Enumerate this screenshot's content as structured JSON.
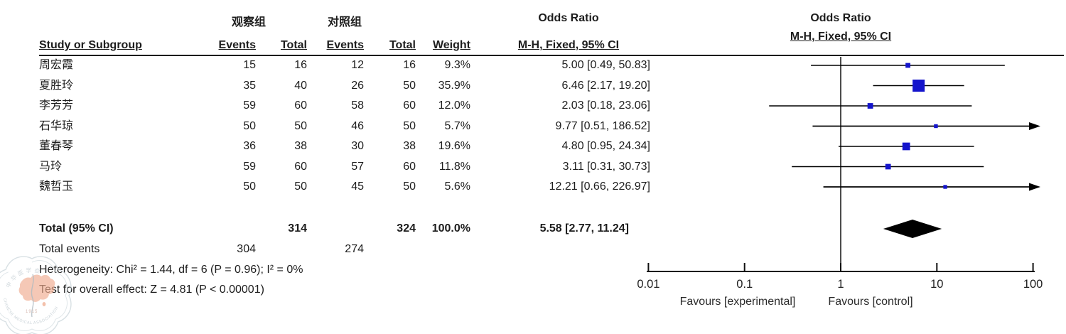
{
  "header": {
    "group_experimental": "观察组",
    "group_control": "对照组",
    "col_study": "Study or Subgroup",
    "col_events": "Events",
    "col_total": "Total",
    "col_weight": "Weight",
    "or_label": "Odds Ratio",
    "mh_label": "M-H, Fixed, 95% CI"
  },
  "table": {
    "rows": [
      {
        "study": "周宏霞",
        "events1": "15",
        "total1": "16",
        "events2": "12",
        "total2": "16",
        "weight": "9.3%",
        "or_ci": "5.00 [0.49, 50.83]"
      },
      {
        "study": "夏胜玲",
        "events1": "35",
        "total1": "40",
        "events2": "26",
        "total2": "50",
        "weight": "35.9%",
        "or_ci": "6.46 [2.17, 19.20]"
      },
      {
        "study": "李芳芳",
        "events1": "59",
        "total1": "60",
        "events2": "58",
        "total2": "60",
        "weight": "12.0%",
        "or_ci": "2.03 [0.18, 23.06]"
      },
      {
        "study": "石华琼",
        "events1": "50",
        "total1": "50",
        "events2": "46",
        "total2": "50",
        "weight": "5.7%",
        "or_ci": "9.77 [0.51, 186.52]"
      },
      {
        "study": "董春琴",
        "events1": "36",
        "total1": "38",
        "events2": "30",
        "total2": "38",
        "weight": "19.6%",
        "or_ci": "4.80 [0.95, 24.34]"
      },
      {
        "study": "马玲",
        "events1": "59",
        "total1": "60",
        "events2": "57",
        "total2": "60",
        "weight": "11.8%",
        "or_ci": "3.11 [0.31, 30.73]"
      },
      {
        "study": "魏哲玉",
        "events1": "50",
        "total1": "50",
        "events2": "45",
        "total2": "50",
        "weight": "5.6%",
        "or_ci": "12.21 [0.66, 226.97]"
      }
    ]
  },
  "totals": {
    "total_label": "Total (95% CI)",
    "total1": "314",
    "total2": "324",
    "weight": "100.0%",
    "or_ci": "5.58 [2.77, 11.24]",
    "events_label": "Total events",
    "events1": "304",
    "events2": "274",
    "heterogeneity": "Heterogeneity: Chi² = 1.44, df = 6 (P = 0.96); I² = 0%",
    "overall_effect": "Test for overall effect: Z = 4.81 (P < 0.00001)"
  },
  "chart_data": {
    "type": "forest",
    "effect_measure": "Odds Ratio, M-H, Fixed, 95% CI",
    "x_scale": "log10",
    "axis_ticks": [
      0.01,
      0.1,
      1,
      10,
      100
    ],
    "axis_range": [
      0.01,
      100
    ],
    "null_value": 1,
    "studies": [
      {
        "name": "周宏霞",
        "or": 5.0,
        "ci_low": 0.49,
        "ci_high": 50.83,
        "weight_pct": 9.3
      },
      {
        "name": "夏胜玲",
        "or": 6.46,
        "ci_low": 2.17,
        "ci_high": 19.2,
        "weight_pct": 35.9
      },
      {
        "name": "李芳芳",
        "or": 2.03,
        "ci_low": 0.18,
        "ci_high": 23.06,
        "weight_pct": 12.0
      },
      {
        "name": "石华琼",
        "or": 9.77,
        "ci_low": 0.51,
        "ci_high": 186.52,
        "weight_pct": 5.7
      },
      {
        "name": "董春琴",
        "or": 4.8,
        "ci_low": 0.95,
        "ci_high": 24.34,
        "weight_pct": 19.6
      },
      {
        "name": "马玲",
        "or": 3.11,
        "ci_low": 0.31,
        "ci_high": 30.73,
        "weight_pct": 11.8
      },
      {
        "name": "魏哲玉",
        "or": 12.21,
        "ci_low": 0.66,
        "ci_high": 226.97,
        "weight_pct": 5.6
      }
    ],
    "total": {
      "or": 5.58,
      "ci_low": 2.77,
      "ci_high": 11.24,
      "weight_pct": 100.0
    },
    "favours_left": "Favours [experimental]",
    "favours_right": "Favours [control]",
    "marker_color": "#1414cc",
    "line_color": "#000000",
    "diamond_color": "#000000"
  },
  "watermark": {
    "top_text": "中华医学会",
    "ring_text": "CHINESE MEDICAL ASSOCIATION",
    "year_text": "1915"
  }
}
